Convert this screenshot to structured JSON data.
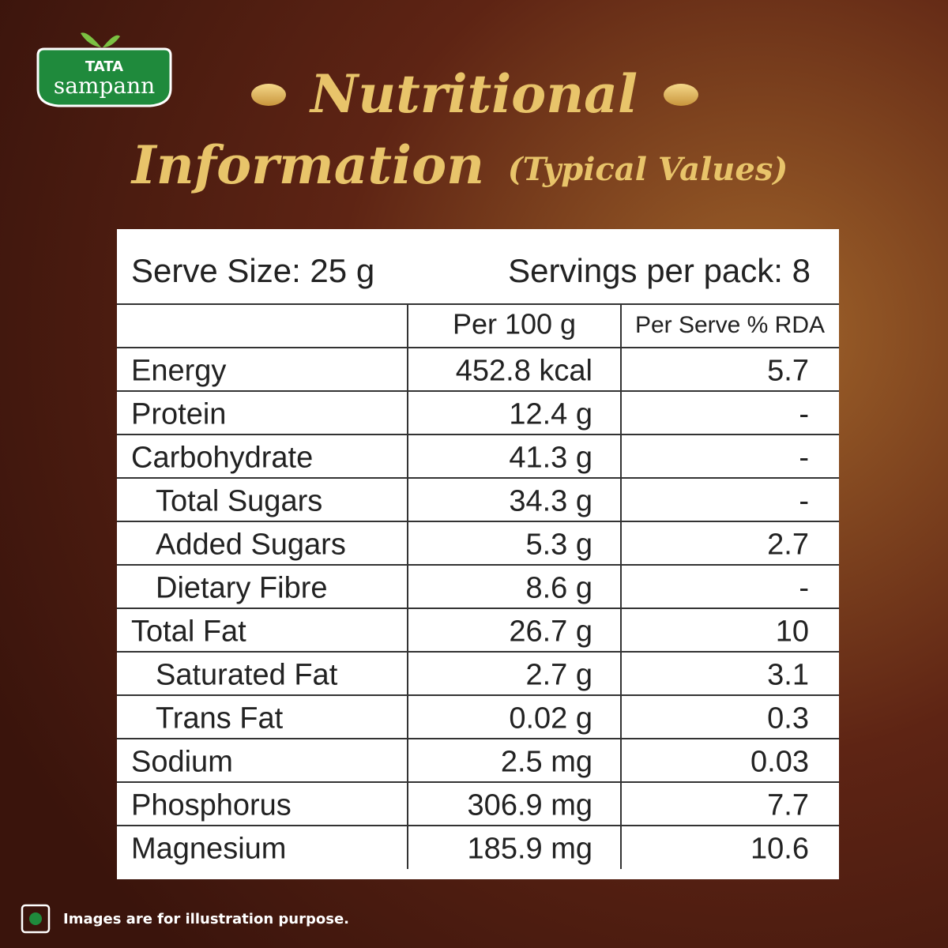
{
  "logo": {
    "brand": "TATA",
    "name": "sampann"
  },
  "title": {
    "line1": "Nutritional",
    "line2": "Information",
    "note": "(Typical Values)"
  },
  "table": {
    "serve_size": "Serve Size: 25 g",
    "servings": "Servings per pack: 8",
    "header": [
      "Per 100 g",
      "Per Serve % RDA"
    ],
    "rows": [
      {
        "name": "Energy",
        "per_100g": "452.8 kcal",
        "rda": "5.7",
        "sub": false
      },
      {
        "name": "Protein",
        "per_100g": "12.4 g",
        "rda": "-",
        "sub": false
      },
      {
        "name": "Carbohydrate",
        "per_100g": "41.3 g",
        "rda": "-",
        "sub": false
      },
      {
        "name": "Total Sugars",
        "per_100g": "34.3 g",
        "rda": "-",
        "sub": true
      },
      {
        "name": "Added Sugars",
        "per_100g": "5.3 g",
        "rda": "2.7",
        "sub": true
      },
      {
        "name": "Dietary Fibre",
        "per_100g": "8.6 g",
        "rda": "-",
        "sub": true
      },
      {
        "name": "Total Fat",
        "per_100g": "26.7 g",
        "rda": "10",
        "sub": false
      },
      {
        "name": "Saturated Fat",
        "per_100g": "2.7 g",
        "rda": "3.1",
        "sub": true
      },
      {
        "name": "Trans Fat",
        "per_100g": "0.02 g",
        "rda": "0.3",
        "sub": true
      },
      {
        "name": "Sodium",
        "per_100g": "2.5 mg",
        "rda": "0.03",
        "sub": false
      },
      {
        "name": "Phosphorus",
        "per_100g": "306.9 mg",
        "rda": "7.7",
        "sub": false
      },
      {
        "name": "Magnesium",
        "per_100g": "185.9 mg",
        "rda": "10.6",
        "sub": false
      }
    ]
  },
  "footer": "Images are for illustration purpose."
}
